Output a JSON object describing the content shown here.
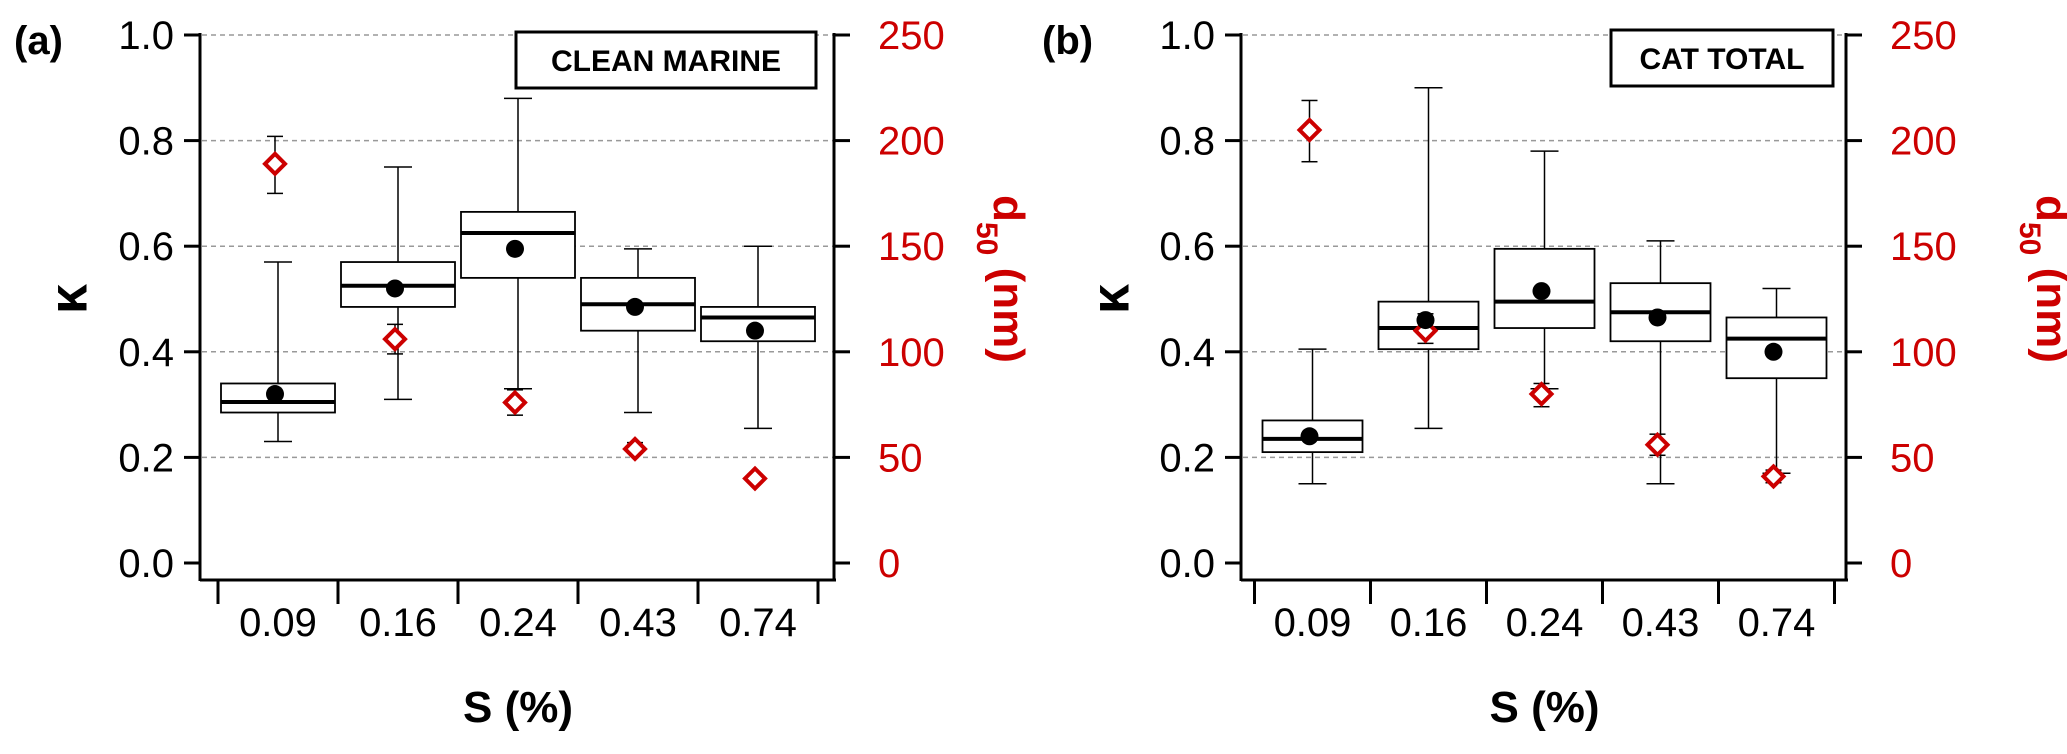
{
  "chart_data": [
    {
      "type": "box",
      "panel_label": "(a)",
      "annotation": "CLEAN MARINE",
      "xlabel": "S (%)",
      "ylabel": "κ",
      "y2label_main": "d",
      "y2label_sub": "50",
      "y2label_unit": " (nm)",
      "categories": [
        "0.09",
        "0.16",
        "0.24",
        "0.43",
        "0.74"
      ],
      "ylim": [
        0,
        1.0
      ],
      "yticks": [
        "0.0",
        "0.2",
        "0.4",
        "0.6",
        "0.8",
        "1.0"
      ],
      "y2lim": [
        0,
        250
      ],
      "y2ticks": [
        "0",
        "50",
        "100",
        "150",
        "200",
        "250"
      ],
      "grid": true,
      "colors": {
        "right_axis": "#cc0000",
        "box": "#000000",
        "marker_fill": "#ffffff"
      },
      "boxes": [
        {
          "whisker_low": 0.23,
          "q1": 0.285,
          "median": 0.305,
          "q3": 0.34,
          "whisker_high": 0.57,
          "mean": 0.32
        },
        {
          "whisker_low": 0.31,
          "q1": 0.485,
          "median": 0.525,
          "q3": 0.57,
          "whisker_high": 0.75,
          "mean": 0.52
        },
        {
          "whisker_low": 0.33,
          "q1": 0.54,
          "median": 0.625,
          "q3": 0.665,
          "whisker_high": 0.88,
          "mean": 0.595
        },
        {
          "whisker_low": 0.285,
          "q1": 0.44,
          "median": 0.49,
          "q3": 0.54,
          "whisker_high": 0.595,
          "mean": 0.485
        },
        {
          "whisker_low": 0.255,
          "q1": 0.42,
          "median": 0.465,
          "q3": 0.485,
          "whisker_high": 0.6,
          "mean": 0.44
        }
      ],
      "d50": [
        {
          "value": 189,
          "err_low": 175,
          "err_high": 202
        },
        {
          "value": 106,
          "err_low": 99,
          "err_high": 113
        },
        {
          "value": 76,
          "err_low": 70,
          "err_high": 82
        },
        {
          "value": 54,
          "err_low": 52,
          "err_high": 57
        },
        {
          "value": 40,
          "err_low": 38,
          "err_high": 42
        }
      ]
    },
    {
      "type": "box",
      "panel_label": "(b)",
      "annotation": "CAT TOTAL",
      "xlabel": "S (%)",
      "ylabel": "κ",
      "y2label_main": "d",
      "y2label_sub": "50",
      "y2label_unit": " (nm)",
      "categories": [
        "0.09",
        "0.16",
        "0.24",
        "0.43",
        "0.74"
      ],
      "ylim": [
        0,
        1.0
      ],
      "yticks": [
        "0.0",
        "0.2",
        "0.4",
        "0.6",
        "0.8",
        "1.0"
      ],
      "y2lim": [
        0,
        250
      ],
      "y2ticks": [
        "0",
        "50",
        "100",
        "150",
        "200",
        "250"
      ],
      "grid": true,
      "colors": {
        "right_axis": "#cc0000",
        "box": "#000000",
        "marker_fill": "#ffffff"
      },
      "boxes": [
        {
          "whisker_low": 0.15,
          "q1": 0.21,
          "median": 0.235,
          "q3": 0.27,
          "whisker_high": 0.405,
          "mean": 0.24
        },
        {
          "whisker_low": 0.255,
          "q1": 0.405,
          "median": 0.445,
          "q3": 0.495,
          "whisker_high": 0.9,
          "mean": 0.46
        },
        {
          "whisker_low": 0.33,
          "q1": 0.445,
          "median": 0.495,
          "q3": 0.595,
          "whisker_high": 0.78,
          "mean": 0.515
        },
        {
          "whisker_low": 0.15,
          "q1": 0.42,
          "median": 0.475,
          "q3": 0.53,
          "whisker_high": 0.61,
          "mean": 0.465
        },
        {
          "whisker_low": 0.17,
          "q1": 0.35,
          "median": 0.425,
          "q3": 0.465,
          "whisker_high": 0.52,
          "mean": 0.4
        }
      ],
      "d50": [
        {
          "value": 205,
          "err_low": 190,
          "err_high": 219
        },
        {
          "value": 110,
          "err_low": 104,
          "err_high": 118
        },
        {
          "value": 80,
          "err_low": 74,
          "err_high": 85
        },
        {
          "value": 56,
          "err_low": 51,
          "err_high": 61
        },
        {
          "value": 41,
          "err_low": 38,
          "err_high": 44
        }
      ]
    }
  ]
}
